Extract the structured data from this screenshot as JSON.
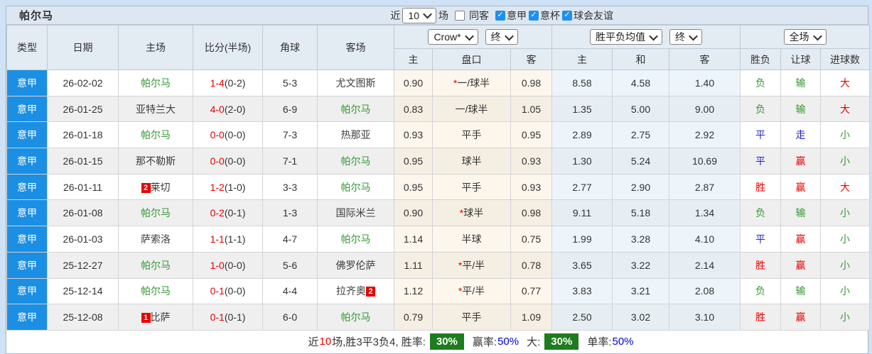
{
  "title": "帕尔马",
  "topbar": {
    "near_label": "近",
    "matches_select": "10",
    "matches_label": "场",
    "checkboxes": [
      {
        "label": "同客",
        "checked": false
      },
      {
        "label": "意甲",
        "checked": true
      },
      {
        "label": "意杯",
        "checked": true
      },
      {
        "label": "球会友谊",
        "checked": true
      }
    ]
  },
  "header": {
    "type": "类型",
    "date": "日期",
    "home": "主场",
    "score": "比分(半场)",
    "corner": "角球",
    "away": "客场",
    "company_select": "Crow*",
    "company_final_select": "终",
    "avg_select": "胜平负均值",
    "avg_final_select": "终",
    "scope_select": "全场",
    "sub": {
      "home": "主",
      "handicap": "盘口",
      "away": "客",
      "avg_home": "主",
      "avg_draw": "和",
      "avg_away": "客",
      "result": "胜负",
      "let_goal": "让球",
      "goals": "进球数"
    }
  },
  "rows": [
    {
      "league": "意甲",
      "date": "26-02-02",
      "home": "帕尔马",
      "home_color": "green",
      "score": "1-4",
      "half": "(0-2)",
      "corner": "5-3",
      "away": "尤文图斯",
      "away_color": "dark",
      "odds_home": "0.90",
      "star": "*",
      "handicap": "一/球半",
      "odds_away": "0.98",
      "avg_home": "8.58",
      "avg_draw": "4.58",
      "avg_away": "1.40",
      "result": "负",
      "result_color": "green",
      "let_goal": "输",
      "let_color": "green",
      "goal": "大",
      "goal_color": "red"
    },
    {
      "league": "意甲",
      "date": "26-01-25",
      "home": "亚特兰大",
      "home_color": "dark",
      "score": "4-0",
      "half": "(2-0)",
      "corner": "6-9",
      "away": "帕尔马",
      "away_color": "green",
      "odds_home": "0.83",
      "star": "",
      "handicap": "一/球半",
      "odds_away": "1.05",
      "avg_home": "1.35",
      "avg_draw": "5.00",
      "avg_away": "9.00",
      "result": "负",
      "result_color": "green",
      "let_goal": "输",
      "let_color": "green",
      "goal": "大",
      "goal_color": "red"
    },
    {
      "league": "意甲",
      "date": "26-01-18",
      "home": "帕尔马",
      "home_color": "green",
      "score": "0-0",
      "half": "(0-0)",
      "corner": "7-3",
      "away": "热那亚",
      "away_color": "dark",
      "odds_home": "0.93",
      "star": "",
      "handicap": "平手",
      "odds_away": "0.95",
      "avg_home": "2.89",
      "avg_draw": "2.75",
      "avg_away": "2.92",
      "result": "平",
      "result_color": "blue",
      "let_goal": "走",
      "let_color": "blue",
      "goal": "小",
      "goal_color": "green"
    },
    {
      "league": "意甲",
      "date": "26-01-15",
      "home": "那不勒斯",
      "home_color": "dark",
      "score": "0-0",
      "half": "(0-0)",
      "corner": "7-1",
      "away": "帕尔马",
      "away_color": "green",
      "odds_home": "0.95",
      "star": "",
      "handicap": "球半",
      "odds_away": "0.93",
      "avg_home": "1.30",
      "avg_draw": "5.24",
      "avg_away": "10.69",
      "result": "平",
      "result_color": "blue",
      "let_goal": "赢",
      "let_color": "red",
      "goal": "小",
      "goal_color": "green"
    },
    {
      "league": "意甲",
      "date": "26-01-11",
      "home": "莱切",
      "home_color": "dark",
      "home_badge_pre": "2",
      "score": "1-2",
      "half": "(1-0)",
      "corner": "3-3",
      "away": "帕尔马",
      "away_color": "green",
      "odds_home": "0.95",
      "star": "",
      "handicap": "平手",
      "odds_away": "0.93",
      "avg_home": "2.77",
      "avg_draw": "2.90",
      "avg_away": "2.87",
      "result": "胜",
      "result_color": "red",
      "let_goal": "赢",
      "let_color": "red",
      "goal": "大",
      "goal_color": "red"
    },
    {
      "league": "意甲",
      "date": "26-01-08",
      "home": "帕尔马",
      "home_color": "green",
      "score": "0-2",
      "half": "(0-1)",
      "corner": "1-3",
      "away": "国际米兰",
      "away_color": "dark",
      "odds_home": "0.90",
      "star": "*",
      "handicap": "球半",
      "odds_away": "0.98",
      "avg_home": "9.11",
      "avg_draw": "5.18",
      "avg_away": "1.34",
      "result": "负",
      "result_color": "green",
      "let_goal": "输",
      "let_color": "green",
      "goal": "小",
      "goal_color": "green"
    },
    {
      "league": "意甲",
      "date": "26-01-03",
      "home": "萨索洛",
      "home_color": "dark",
      "score": "1-1",
      "half": "(1-1)",
      "corner": "4-7",
      "away": "帕尔马",
      "away_color": "green",
      "odds_home": "1.14",
      "star": "",
      "handicap": "半球",
      "odds_away": "0.75",
      "avg_home": "1.99",
      "avg_draw": "3.28",
      "avg_away": "4.10",
      "result": "平",
      "result_color": "blue",
      "let_goal": "赢",
      "let_color": "red",
      "goal": "小",
      "goal_color": "green"
    },
    {
      "league": "意甲",
      "date": "25-12-27",
      "home": "帕尔马",
      "home_color": "green",
      "score": "1-0",
      "half": "(0-0)",
      "corner": "5-6",
      "away": "佛罗伦萨",
      "away_color": "dark",
      "odds_home": "1.11",
      "star": "*",
      "handicap": "平/半",
      "odds_away": "0.78",
      "avg_home": "3.65",
      "avg_draw": "3.22",
      "avg_away": "2.14",
      "result": "胜",
      "result_color": "red",
      "let_goal": "赢",
      "let_color": "red",
      "goal": "小",
      "goal_color": "green"
    },
    {
      "league": "意甲",
      "date": "25-12-14",
      "home": "帕尔马",
      "home_color": "green",
      "score": "0-1",
      "half": "(0-0)",
      "corner": "4-4",
      "away": "拉齐奥",
      "away_color": "dark",
      "away_badge_post": "2",
      "odds_home": "1.12",
      "star": "*",
      "handicap": "平/半",
      "odds_away": "0.77",
      "avg_home": "3.83",
      "avg_draw": "3.21",
      "avg_away": "2.08",
      "result": "负",
      "result_color": "green",
      "let_goal": "输",
      "let_color": "green",
      "goal": "小",
      "goal_color": "green"
    },
    {
      "league": "意甲",
      "date": "25-12-08",
      "home": "比萨",
      "home_color": "dark",
      "home_badge_pre": "1",
      "score": "0-1",
      "half": "(0-1)",
      "corner": "6-0",
      "away": "帕尔马",
      "away_color": "green",
      "odds_home": "0.79",
      "star": "",
      "handicap": "平手",
      "odds_away": "1.09",
      "avg_home": "2.50",
      "avg_draw": "3.02",
      "avg_away": "3.10",
      "result": "胜",
      "result_color": "red",
      "let_goal": "赢",
      "let_color": "red",
      "goal": "小",
      "goal_color": "green"
    }
  ],
  "footer": {
    "p1": "近",
    "n": "10",
    "p2": "场,胜3平3负4, 胜率:",
    "rate1": "30%",
    "p3": "赢率:",
    "rate2": "50%",
    "p4": "大:",
    "rate3": "30%",
    "p5": "单率:",
    "rate4": "50%"
  },
  "colors": {
    "league_cell_bg": "#1b8fe4",
    "win_red": "#e60000",
    "draw_blue": "#2222cc",
    "lose_green": "#339933",
    "link_blue": "#0000e0",
    "rate_badge_green": "#1e7c1e",
    "handicap_col_bg": "#fcf6ec",
    "avg_col_bg": "#edf5fb",
    "header_bg": "#e3ebf3",
    "red_card_badge_bg": "#e60000"
  }
}
